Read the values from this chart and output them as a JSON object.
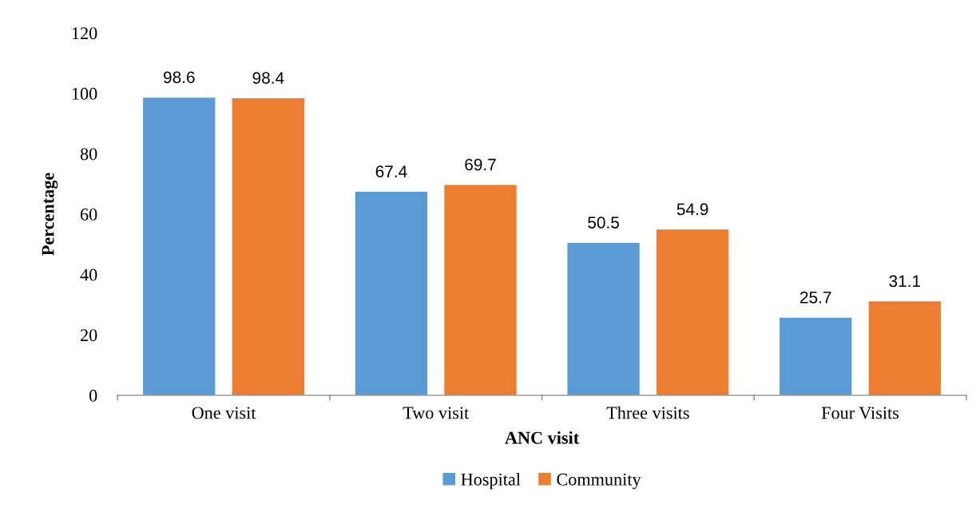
{
  "chart_data": {
    "type": "bar",
    "xlabel": "ANC visit",
    "ylabel": "Percentage",
    "categories": [
      "One visit",
      "Two visit",
      "Three visits",
      "Four Visits"
    ],
    "series": [
      {
        "name": "Hospital",
        "color": "#5b9bd5",
        "values": [
          98.6,
          67.4,
          50.5,
          25.7
        ]
      },
      {
        "name": "Community",
        "color": "#ed7d31",
        "values": [
          98.4,
          69.7,
          54.9,
          31.1
        ]
      }
    ],
    "ylim": [
      0,
      120
    ],
    "yticks": [
      0,
      20,
      40,
      60,
      80,
      100,
      120
    ],
    "data_labels": true,
    "legend": "bottom",
    "grid": false
  }
}
